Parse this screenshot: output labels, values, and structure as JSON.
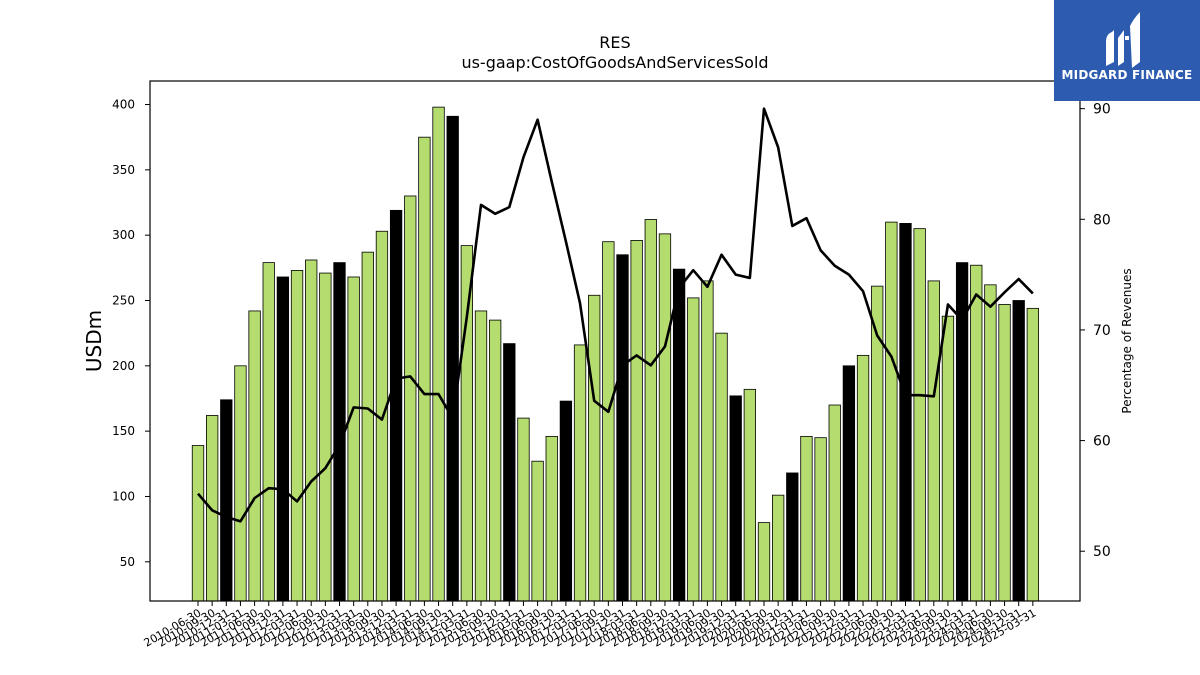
{
  "brand": {
    "name": "MIDGARD FINANCE",
    "color": "#2d5bb0"
  },
  "chart_data": {
    "type": "bar",
    "title": "RES",
    "subtitle": "us-gaap:CostOfGoodsAndServicesSold",
    "ylabel": "USDm",
    "y2label": "Percentage of Revenues",
    "ylim": [
      20,
      418
    ],
    "y2lim": [
      45.5,
      92.5
    ],
    "yticks": [
      50,
      100,
      150,
      200,
      250,
      300,
      350,
      400
    ],
    "y2ticks": [
      50,
      60,
      70,
      80,
      90
    ],
    "grid": false,
    "colors": {
      "bar": "#b5dc6e",
      "bar_q4": "#000000",
      "line": "#000000"
    },
    "categories": [
      "2010-06-30",
      "2010-09-30",
      "2010-12-31",
      "2011-03-31",
      "2011-06-30",
      "2011-09-30",
      "2011-12-31",
      "2012-03-31",
      "2012-06-30",
      "2012-09-30",
      "2012-12-31",
      "2013-03-31",
      "2013-06-30",
      "2013-09-30",
      "2013-12-31",
      "2014-03-31",
      "2014-06-30",
      "2014-09-30",
      "2014-12-31",
      "2015-03-31",
      "2015-06-30",
      "2015-09-30",
      "2015-12-31",
      "2016-03-31",
      "2016-06-30",
      "2016-09-30",
      "2016-12-31",
      "2017-03-31",
      "2017-06-30",
      "2017-09-30",
      "2017-12-31",
      "2018-03-31",
      "2018-06-30",
      "2018-09-30",
      "2018-12-31",
      "2019-03-31",
      "2019-06-30",
      "2019-09-30",
      "2019-12-31",
      "2020-03-31",
      "2020-06-30",
      "2020-09-30",
      "2020-12-31",
      "2021-03-31",
      "2021-06-30",
      "2021-09-30",
      "2021-12-31",
      "2022-03-31",
      "2022-06-30",
      "2022-09-30",
      "2022-12-31",
      "2023-03-31",
      "2023-06-30",
      "2023-09-30",
      "2023-12-31",
      "2024-03-31",
      "2024-06-30",
      "2024-09-30",
      "2024-12-31",
      "2025-03-31"
    ],
    "series": [
      {
        "type": "bar",
        "axis": "left",
        "values": [
          139,
          162,
          174,
          200,
          242,
          279,
          268,
          273,
          281,
          271,
          279,
          268,
          287,
          303,
          319,
          330,
          375,
          398,
          391,
          292,
          242,
          235,
          217,
          160,
          127,
          146,
          173,
          216,
          254,
          295,
          285,
          296,
          312,
          301,
          274,
          252,
          265,
          225,
          177,
          182,
          80,
          101,
          118,
          146,
          145,
          170,
          200,
          208,
          261,
          310,
          309,
          305,
          265,
          238,
          279,
          277,
          262,
          247,
          250,
          244
        ]
      },
      {
        "type": "line",
        "axis": "right",
        "values": [
          55.2,
          53.7,
          53.1,
          52.7,
          54.8,
          55.7,
          55.6,
          54.5,
          56.3,
          57.5,
          59.6,
          63.0,
          62.9,
          61.9,
          65.6,
          65.8,
          64.2,
          64.2,
          62.0,
          71.2,
          81.3,
          80.5,
          81.1,
          85.6,
          89.0,
          83.4,
          78.0,
          72.4,
          63.6,
          62.6,
          66.8,
          67.7,
          66.8,
          68.5,
          73.8,
          75.4,
          73.9,
          76.8,
          75.0,
          74.7,
          90.0,
          86.5,
          79.4,
          80.1,
          77.2,
          75.8,
          75.0,
          73.5,
          69.5,
          67.6,
          64.1,
          64.1,
          64.0,
          72.3,
          70.9,
          73.2,
          72.1,
          73.4,
          74.6,
          73.3
        ]
      }
    ]
  }
}
